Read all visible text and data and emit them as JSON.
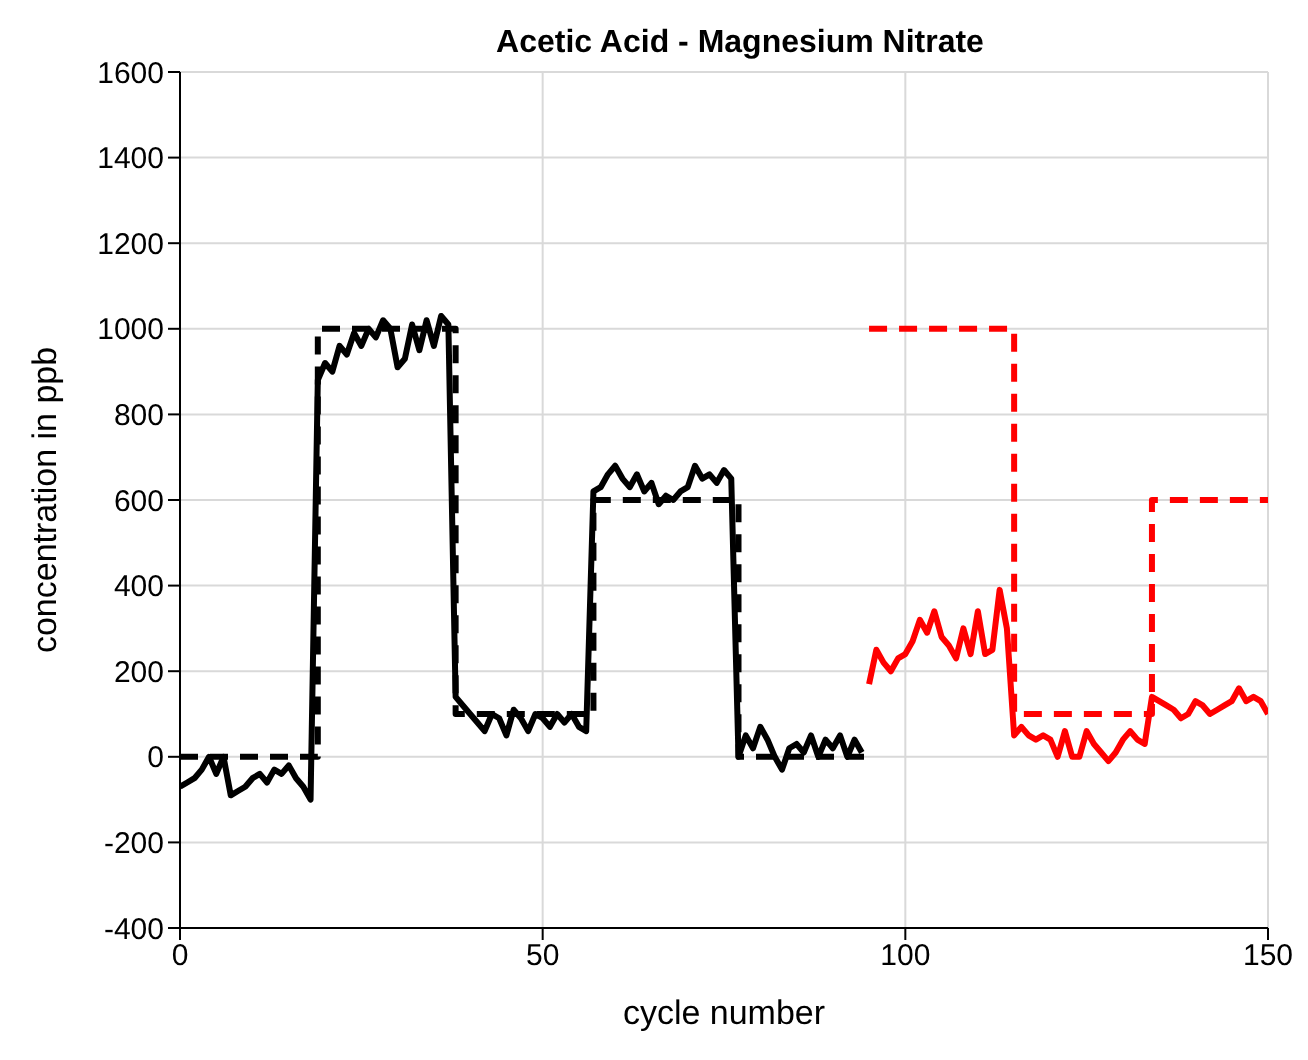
{
  "chart_data": {
    "type": "line",
    "title": "Acetic Acid  - Magnesium Nitrate",
    "xlabel": "cycle number",
    "ylabel": "concentration in ppb",
    "xlim": [
      0,
      150
    ],
    "xticks": [
      0,
      50,
      100,
      150
    ],
    "ylim": [
      -400,
      1600
    ],
    "yticks": [
      -400,
      -200,
      0,
      200,
      400,
      600,
      800,
      1000,
      1200,
      1400,
      1600
    ],
    "grid": true,
    "marker": "none",
    "series": [
      {
        "color": "#000000",
        "line_style": "solid",
        "x": [
          0,
          1,
          2,
          3,
          4,
          5,
          6,
          7,
          8,
          9,
          10,
          11,
          12,
          13,
          14,
          15,
          16,
          17,
          18,
          19,
          20,
          21,
          22,
          23,
          24,
          25,
          26,
          27,
          28,
          29,
          30,
          31,
          32,
          33,
          34,
          35,
          36,
          37,
          38,
          39,
          40,
          41,
          42,
          43,
          44,
          45,
          46,
          47,
          48,
          49,
          50,
          51,
          52,
          53,
          54,
          55,
          56,
          57,
          58,
          59,
          60,
          61,
          62,
          63,
          64,
          65,
          66,
          67,
          68,
          69,
          70,
          71,
          72,
          73,
          74,
          75,
          76,
          77,
          78,
          79,
          80,
          81,
          82,
          83,
          84,
          85,
          86,
          87,
          88,
          89,
          90,
          91,
          92,
          93,
          94
        ],
        "values": [
          -70,
          -60,
          -50,
          -30,
          0,
          -40,
          0,
          -90,
          -80,
          -70,
          -50,
          -40,
          -60,
          -30,
          -40,
          -20,
          -50,
          -70,
          -100,
          880,
          920,
          900,
          960,
          940,
          990,
          960,
          1000,
          980,
          1020,
          1000,
          910,
          930,
          1010,
          950,
          1020,
          960,
          1030,
          1010,
          140,
          120,
          100,
          80,
          60,
          100,
          90,
          50,
          110,
          90,
          60,
          100,
          90,
          70,
          100,
          80,
          100,
          70,
          60,
          620,
          630,
          660,
          680,
          650,
          630,
          660,
          620,
          640,
          590,
          610,
          600,
          620,
          630,
          680,
          650,
          660,
          640,
          670,
          650,
          0,
          50,
          20,
          70,
          40,
          0,
          -30,
          20,
          30,
          10,
          50,
          0,
          40,
          20,
          50,
          0,
          40,
          10
        ]
      },
      {
        "color": "#000000",
        "line_style": "dashed",
        "x": [
          0,
          19,
          19,
          38,
          38,
          57,
          57,
          77,
          77,
          95
        ],
        "values": [
          0,
          0,
          1000,
          1000,
          100,
          100,
          600,
          600,
          0,
          0
        ]
      },
      {
        "color": "#ff0000",
        "line_style": "solid",
        "x": [
          95,
          96,
          97,
          98,
          99,
          100,
          101,
          102,
          103,
          104,
          105,
          106,
          107,
          108,
          109,
          110,
          111,
          112,
          113,
          114,
          115,
          116,
          117,
          118,
          119,
          120,
          121,
          122,
          123,
          124,
          125,
          126,
          127,
          128,
          129,
          130,
          131,
          132,
          133,
          134,
          135,
          136,
          137,
          138,
          139,
          140,
          141,
          142,
          143,
          144,
          145,
          146,
          147,
          148,
          149,
          150
        ],
        "values": [
          170,
          250,
          220,
          200,
          230,
          240,
          270,
          320,
          290,
          340,
          280,
          260,
          230,
          300,
          240,
          340,
          240,
          250,
          390,
          300,
          50,
          70,
          50,
          40,
          50,
          40,
          0,
          60,
          0,
          0,
          60,
          30,
          10,
          -10,
          10,
          40,
          60,
          40,
          30,
          140,
          130,
          120,
          110,
          90,
          100,
          130,
          120,
          100,
          110,
          120,
          130,
          160,
          130,
          140,
          130,
          100
        ]
      },
      {
        "color": "#ff0000",
        "line_style": "dashed",
        "x": [
          95,
          115,
          115,
          134,
          134,
          150
        ],
        "values": [
          1000,
          1000,
          100,
          100,
          600,
          600
        ]
      }
    ]
  }
}
